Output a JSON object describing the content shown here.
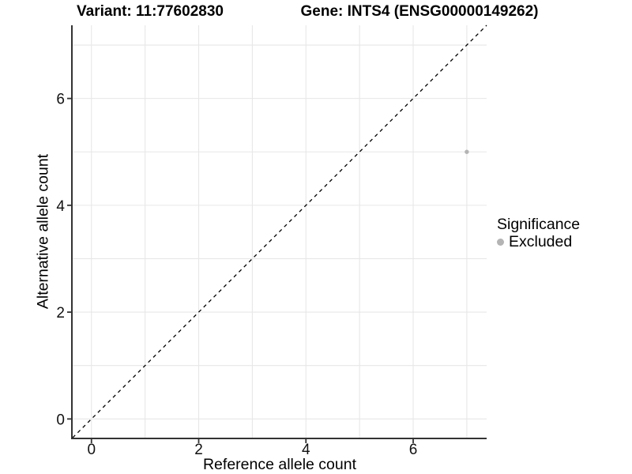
{
  "figure": {
    "title_left": "Variant: 11:77602830",
    "title_right": "Gene: INTS4 (ENSG00000149262)",
    "xlabel": "Reference allele count",
    "ylabel": "Alternative allele count",
    "legend": {
      "title": "Significance",
      "items": [
        {
          "label": "Excluded",
          "color": "#b4b4b4"
        }
      ]
    }
  },
  "chart_data": {
    "type": "scatter",
    "title": "Variant: 11:77602830 / Gene: INTS4 (ENSG00000149262)",
    "xlabel": "Reference allele count",
    "ylabel": "Alternative allele count",
    "xlim": [
      -0.35,
      7.37
    ],
    "ylim": [
      -0.35,
      7.37
    ],
    "x_ticks": [
      0,
      2,
      4,
      6
    ],
    "y_ticks": [
      0,
      2,
      4,
      6
    ],
    "gridlines": [
      0,
      1,
      2,
      3,
      4,
      5,
      6,
      7
    ],
    "grid": true,
    "series": [
      {
        "name": "Excluded",
        "color": "#b4b4b4",
        "points": [
          {
            "x": 7,
            "y": 5
          }
        ]
      }
    ],
    "reference_line": {
      "type": "identity",
      "slope": 1,
      "intercept": 0,
      "style": "dashed",
      "color": "#000000"
    },
    "legend": {
      "title": "Significance",
      "position": "right",
      "entries": [
        "Excluded"
      ]
    },
    "colors": {
      "grid": "#e7e7e7",
      "axis": "#333333",
      "tick_text": "#111111",
      "point": "#b4b4b4",
      "diagonal": "#000000"
    }
  }
}
